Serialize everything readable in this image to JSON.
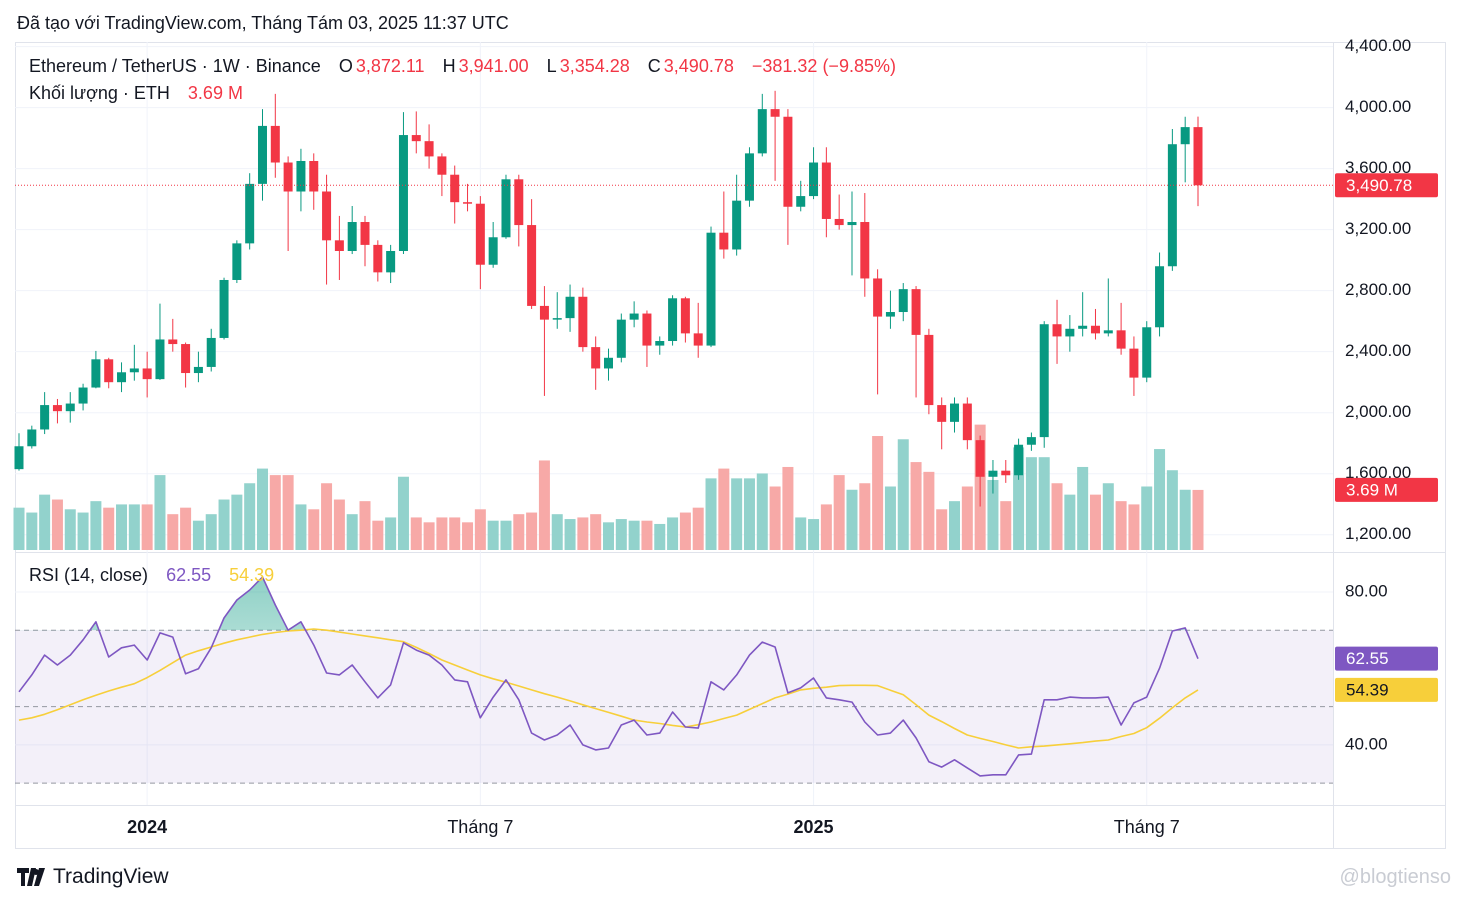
{
  "header": {
    "text": "Đã tạo với TradingView.com, Tháng Tám 03, 2025 11:37 UTC"
  },
  "footer": {
    "brand": "TradingView",
    "watermark": "@blogtienso"
  },
  "chart_data": [
    {
      "type": "candlestick",
      "title": "Ethereum / TetherUS · 1W · Binance",
      "categories": [
        null,
        null,
        null,
        null,
        null,
        null,
        null,
        null,
        null,
        null,
        "2024",
        null,
        null,
        null,
        null,
        null,
        null,
        null,
        null,
        null,
        null,
        null,
        null,
        null,
        null,
        null,
        null,
        null,
        null,
        null,
        null,
        null,
        null,
        null,
        null,
        null,
        "Tháng 7",
        null,
        null,
        null,
        null,
        null,
        null,
        null,
        null,
        null,
        null,
        null,
        null,
        null,
        null,
        null,
        null,
        null,
        null,
        null,
        null,
        null,
        null,
        null,
        null,
        null,
        "2025",
        null,
        null,
        null,
        null,
        null,
        null,
        null,
        null,
        null,
        null,
        null,
        null,
        null,
        null,
        null,
        null,
        null,
        null,
        null,
        null,
        null,
        null,
        null,
        null,
        null,
        "Tháng 7",
        null,
        null,
        null,
        null
      ],
      "open": [
        1630,
        1780,
        1890,
        2050,
        2010,
        2060,
        2165,
        2350,
        2200,
        2265,
        2290,
        2220,
        2480,
        2450,
        2260,
        2300,
        2490,
        2870,
        3110,
        3500,
        3880,
        3640,
        3450,
        3650,
        3450,
        3130,
        3060,
        3250,
        3100,
        2920,
        3060,
        3820,
        3780,
        3680,
        3560,
        3380,
        3370,
        2970,
        3150,
        3530,
        3230,
        2700,
        2610,
        2620,
        2760,
        2430,
        2290,
        2360,
        2610,
        2650,
        2440,
        2470,
        2750,
        2520,
        2440,
        3180,
        3070,
        3390,
        3700,
        3990,
        3940,
        3350,
        3420,
        3640,
        3270,
        3230,
        3250,
        2880,
        2630,
        2660,
        2810,
        2510,
        2050,
        1940,
        2060,
        1820,
        1580,
        1620,
        1590,
        1790,
        1840,
        2580,
        2500,
        2550,
        2570,
        2520,
        2540,
        2420,
        2230,
        2560,
        2960,
        3760,
        3872.11
      ],
      "high": [
        1865,
        1915,
        2135,
        2090,
        2135,
        2190,
        2405,
        2360,
        2330,
        2445,
        2400,
        2715,
        2615,
        2460,
        2400,
        2550,
        2885,
        3130,
        3570,
        3990,
        4090,
        3680,
        3730,
        3700,
        3560,
        3290,
        3355,
        3290,
        3130,
        3100,
        3970,
        3975,
        3890,
        3700,
        3620,
        3500,
        3420,
        3250,
        3560,
        3560,
        3400,
        2830,
        2790,
        2840,
        2820,
        2500,
        2420,
        2650,
        2730,
        2670,
        2500,
        2770,
        2760,
        2720,
        3220,
        3450,
        3560,
        3740,
        4090,
        4110,
        3990,
        3520,
        3740,
        3740,
        3430,
        3450,
        3440,
        2940,
        2800,
        2850,
        2830,
        2550,
        2100,
        2100,
        2100,
        1850,
        1690,
        1690,
        1830,
        1870,
        2600,
        2740,
        2640,
        2790,
        2680,
        2880,
        2720,
        2500,
        2600,
        3050,
        3860,
        3940,
        3941.0
      ],
      "low": [
        1620,
        1765,
        1860,
        1930,
        1935,
        2015,
        2160,
        2160,
        2135,
        2210,
        2100,
        2215,
        2400,
        2165,
        2200,
        2270,
        2480,
        2850,
        3070,
        3390,
        3540,
        3060,
        3320,
        3330,
        2840,
        2870,
        3040,
        2960,
        2860,
        2850,
        3040,
        3700,
        3600,
        3420,
        3240,
        3320,
        2810,
        2950,
        3140,
        3090,
        2680,
        2110,
        2550,
        2530,
        2400,
        2150,
        2210,
        2330,
        2560,
        2300,
        2380,
        2440,
        2460,
        2360,
        2430,
        3010,
        3030,
        3350,
        3680,
        3520,
        3100,
        3320,
        3400,
        3150,
        3200,
        2900,
        2760,
        2120,
        2550,
        2600,
        2100,
        1990,
        1760,
        1870,
        1760,
        1385,
        1470,
        1540,
        1560,
        1750,
        1770,
        2320,
        2400,
        2500,
        2480,
        2500,
        2380,
        2110,
        2200,
        2500,
        2930,
        3510,
        3354.28
      ],
      "close": [
        1780,
        1890,
        2050,
        2010,
        2060,
        2165,
        2350,
        2200,
        2265,
        2290,
        2220,
        2480,
        2450,
        2260,
        2300,
        2490,
        2870,
        3110,
        3500,
        3880,
        3640,
        3450,
        3650,
        3450,
        3130,
        3060,
        3250,
        3100,
        2920,
        3060,
        3820,
        3780,
        3680,
        3560,
        3380,
        3370,
        2970,
        3150,
        3530,
        3230,
        2700,
        2610,
        2620,
        2760,
        2430,
        2290,
        2360,
        2610,
        2650,
        2440,
        2470,
        2750,
        2520,
        2440,
        3180,
        3070,
        3390,
        3700,
        3990,
        3940,
        3350,
        3420,
        3640,
        3270,
        3230,
        3250,
        2880,
        2630,
        2660,
        2810,
        2510,
        2050,
        1940,
        2060,
        1820,
        1580,
        1620,
        1590,
        1790,
        1840,
        2580,
        2500,
        2550,
        2570,
        2520,
        2540,
        2420,
        2230,
        2560,
        2960,
        3760,
        3872.11,
        3490.78
      ],
      "ohlc_keys": [
        "O",
        "H",
        "L",
        "C"
      ],
      "last_value_labels": [
        "3,872.11",
        "3,941.00",
        "3,354.28",
        "3,490.78"
      ],
      "change_label": "−381.32 (−9.85%)",
      "up_color": "#089981",
      "down_color": "#f23645",
      "volume_up_color": "#92d2cc",
      "volume_down_color": "#f7a9a7",
      "ylim": [
        1100,
        4430
      ],
      "yticks": [
        {
          "value": 1200,
          "label": "1,200.00"
        },
        {
          "value": 1600,
          "label": "1,600.00"
        },
        {
          "value": 2000,
          "label": "2,000.00"
        },
        {
          "value": 2400,
          "label": "2,400.00"
        },
        {
          "value": 2800,
          "label": "2,800.00"
        },
        {
          "value": 3200,
          "label": "3,200.00"
        },
        {
          "value": 3600,
          "label": "3,600.00"
        },
        {
          "value": 4000,
          "label": "4,000.00"
        },
        {
          "value": 4400,
          "label": "4,400.00"
        }
      ],
      "grid": true,
      "volume": {
        "title": "Khối lượng · ETH",
        "last_label": "3.69 M",
        "ylim": [
          0,
          31.2
        ],
        "values": [
          2.6,
          2.3,
          3.4,
          3.1,
          2.5,
          2.3,
          3.0,
          2.6,
          2.8,
          2.8,
          2.8,
          4.6,
          2.2,
          2.6,
          1.8,
          2.2,
          3.1,
          3.4,
          4.1,
          5.0,
          4.6,
          4.6,
          2.8,
          2.5,
          4.1,
          3.1,
          2.2,
          3.0,
          1.8,
          2.0,
          4.5,
          2.0,
          1.7,
          2.0,
          2.0,
          1.7,
          2.5,
          1.8,
          1.8,
          2.2,
          2.3,
          5.5,
          2.2,
          1.9,
          2.0,
          2.2,
          1.7,
          1.9,
          1.8,
          1.8,
          1.6,
          2.0,
          2.3,
          2.6,
          4.4,
          5.0,
          4.4,
          4.4,
          4.7,
          3.9,
          5.1,
          2.0,
          1.9,
          2.8,
          4.6,
          3.7,
          4.1,
          7.0,
          3.9,
          6.8,
          5.4,
          4.8,
          2.5,
          3.0,
          3.9,
          7.7,
          4.3,
          3.0,
          6.3,
          5.7,
          5.7,
          4.1,
          3.4,
          5.1,
          3.4,
          4.1,
          3.0,
          2.8,
          3.9,
          6.2,
          4.9,
          3.7,
          3.69
        ]
      }
    },
    {
      "type": "line",
      "title": "RSI (14, close)",
      "ylim": [
        25.6,
        89.4
      ],
      "yticks": [
        {
          "value": 40,
          "label": "40.00"
        },
        {
          "value": 80,
          "label": "80.00"
        }
      ],
      "band": [
        30,
        70
      ],
      "midline": 50,
      "band_color": "#7e57c2",
      "overbought_color": "#089981",
      "series": [
        {
          "color": "#7e57c2",
          "last_label": "62.55",
          "tag_text_color": "#ffffff",
          "values": [
            53.9,
            58.3,
            63.5,
            60.9,
            63.5,
            67.5,
            72.2,
            63.0,
            65.4,
            66.1,
            62.2,
            69.3,
            68.2,
            58.6,
            59.9,
            65.4,
            73.2,
            77.9,
            80.5,
            83.9,
            76.6,
            70.0,
            72.2,
            66.1,
            58.8,
            58.3,
            60.9,
            56.5,
            52.3,
            55.7,
            66.7,
            64.8,
            63.5,
            60.9,
            57.0,
            56.5,
            47.1,
            52.5,
            57.0,
            51.8,
            43.1,
            41.3,
            42.6,
            45.2,
            40.0,
            38.7,
            39.2,
            45.2,
            46.5,
            42.6,
            43.1,
            48.6,
            44.7,
            44.4,
            56.5,
            54.4,
            58.3,
            63.5,
            66.9,
            65.6,
            53.6,
            54.9,
            57.5,
            52.3,
            51.8,
            51.2,
            46.0,
            42.6,
            43.1,
            46.5,
            41.8,
            35.6,
            34.2,
            36.1,
            34.0,
            31.9,
            32.2,
            32.2,
            37.4,
            37.6,
            51.8,
            51.8,
            52.5,
            52.3,
            52.3,
            52.5,
            45.2,
            51.0,
            52.5,
            60.1,
            69.8,
            70.6,
            62.55
          ]
        },
        {
          "color": "#f7cf3a",
          "last_label": "54.39",
          "tag_text_color": "#131722",
          "values": [
            46.5,
            47.1,
            48.0,
            49.2,
            50.5,
            51.8,
            53.0,
            54.1,
            55.1,
            56.0,
            57.6,
            59.5,
            61.5,
            63.5,
            64.6,
            65.6,
            66.6,
            67.5,
            68.2,
            68.9,
            69.4,
            69.8,
            70.0,
            70.3,
            70.0,
            69.5,
            69.0,
            68.5,
            68.0,
            67.5,
            67.0,
            65.5,
            63.9,
            62.2,
            60.9,
            59.6,
            58.3,
            57.3,
            56.4,
            55.4,
            54.4,
            53.4,
            52.5,
            51.5,
            50.5,
            49.5,
            48.5,
            47.5,
            46.5,
            46.0,
            45.6,
            45.1,
            44.7,
            45.3,
            46.0,
            46.9,
            47.8,
            49.3,
            50.8,
            52.3,
            53.3,
            54.4,
            54.8,
            55.1,
            55.5,
            55.6,
            55.6,
            55.5,
            54.3,
            53.1,
            50.5,
            47.8,
            46.1,
            44.3,
            42.6,
            41.7,
            40.9,
            40.0,
            39.2,
            39.5,
            39.7,
            40.0,
            40.3,
            40.6,
            41.0,
            41.3,
            42.2,
            43.0,
            44.5,
            47.0,
            49.7,
            52.3,
            54.39
          ]
        }
      ]
    }
  ]
}
